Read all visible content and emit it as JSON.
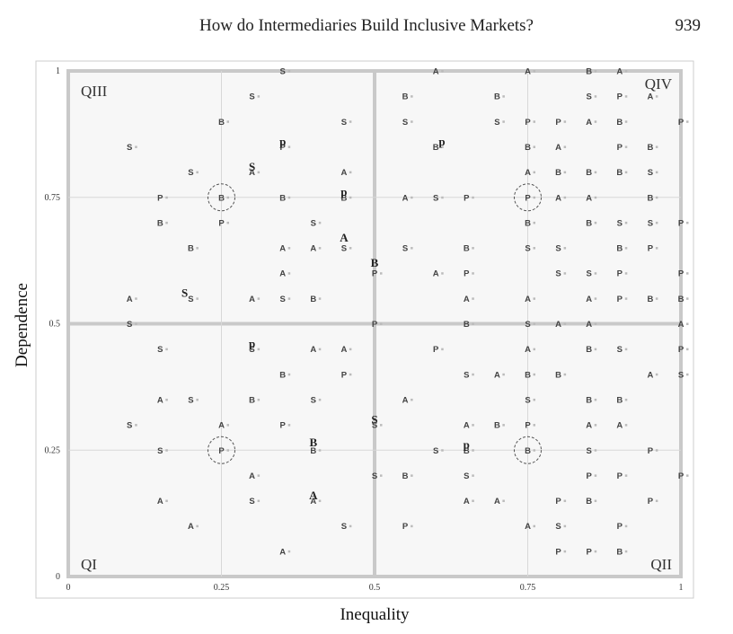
{
  "header": {
    "title": "How do Intermediaries Build Inclusive Markets?",
    "page_number": "939"
  },
  "chart_data": {
    "type": "scatter",
    "xlabel": "Inequality",
    "ylabel": "Dependence",
    "xlim": [
      0,
      1
    ],
    "ylim": [
      0,
      1
    ],
    "x_ticks": [
      "0",
      "0.25",
      "0.5",
      "0.75",
      "1"
    ],
    "y_ticks": [
      "0",
      "0.25",
      "0.5",
      "0.75",
      "1"
    ],
    "grid": true,
    "quadrant_labels": {
      "q1": "QI",
      "q2": "QII",
      "q3": "QIII",
      "q4": "QIV"
    },
    "circled_points": [
      [
        0.25,
        0.75
      ],
      [
        0.75,
        0.75
      ],
      [
        0.25,
        0.25
      ],
      [
        0.75,
        0.25
      ]
    ],
    "points": [
      [
        "S",
        0.35,
        1
      ],
      [
        "A",
        0.6,
        1
      ],
      [
        "A",
        0.75,
        1
      ],
      [
        "B",
        0.85,
        1
      ],
      [
        "A",
        0.9,
        1
      ],
      [
        "S",
        0.3,
        0.95
      ],
      [
        "B",
        0.55,
        0.95
      ],
      [
        "B",
        0.7,
        0.95
      ],
      [
        "S",
        0.85,
        0.95
      ],
      [
        "P",
        0.9,
        0.95
      ],
      [
        "A",
        0.95,
        0.95
      ],
      [
        "B",
        0.25,
        0.9
      ],
      [
        "S",
        0.45,
        0.9
      ],
      [
        "S",
        0.55,
        0.9
      ],
      [
        "S",
        0.7,
        0.9
      ],
      [
        "P",
        0.75,
        0.9
      ],
      [
        "P",
        0.8,
        0.9
      ],
      [
        "A",
        0.85,
        0.9
      ],
      [
        "B",
        0.9,
        0.9
      ],
      [
        "P",
        1,
        0.9
      ],
      [
        "S",
        0.1,
        0.85
      ],
      [
        "P",
        0.35,
        0.85
      ],
      [
        "B",
        0.6,
        0.85
      ],
      [
        "B",
        0.75,
        0.85
      ],
      [
        "A",
        0.8,
        0.85
      ],
      [
        "P",
        0.9,
        0.85
      ],
      [
        "B",
        0.95,
        0.85
      ],
      [
        "S",
        0.2,
        0.8
      ],
      [
        "A",
        0.3,
        0.8
      ],
      [
        "A",
        0.45,
        0.8
      ],
      [
        "A",
        0.75,
        0.8
      ],
      [
        "B",
        0.8,
        0.8
      ],
      [
        "B",
        0.85,
        0.8
      ],
      [
        "B",
        0.9,
        0.8
      ],
      [
        "S",
        0.95,
        0.8
      ],
      [
        "P",
        0.15,
        0.75
      ],
      [
        "B",
        0.25,
        0.75
      ],
      [
        "B",
        0.35,
        0.75
      ],
      [
        "B",
        0.45,
        0.75
      ],
      [
        "A",
        0.55,
        0.75
      ],
      [
        "S",
        0.6,
        0.75
      ],
      [
        "P",
        0.65,
        0.75
      ],
      [
        "P",
        0.75,
        0.75
      ],
      [
        "A",
        0.8,
        0.75
      ],
      [
        "A",
        0.85,
        0.75
      ],
      [
        "B",
        0.95,
        0.75
      ],
      [
        "B",
        0.15,
        0.7
      ],
      [
        "P",
        0.25,
        0.7
      ],
      [
        "S",
        0.4,
        0.7
      ],
      [
        "B",
        0.75,
        0.7
      ],
      [
        "B",
        0.85,
        0.7
      ],
      [
        "S",
        0.9,
        0.7
      ],
      [
        "S",
        0.95,
        0.7
      ],
      [
        "P",
        1,
        0.7
      ],
      [
        "B",
        0.2,
        0.65
      ],
      [
        "A",
        0.35,
        0.65
      ],
      [
        "A",
        0.4,
        0.65
      ],
      [
        "S",
        0.45,
        0.65
      ],
      [
        "S",
        0.55,
        0.65
      ],
      [
        "B",
        0.65,
        0.65
      ],
      [
        "S",
        0.75,
        0.65
      ],
      [
        "S",
        0.8,
        0.65
      ],
      [
        "B",
        0.9,
        0.65
      ],
      [
        "P",
        0.95,
        0.65
      ],
      [
        "A",
        0.35,
        0.6
      ],
      [
        "P",
        0.5,
        0.6
      ],
      [
        "A",
        0.6,
        0.6
      ],
      [
        "P",
        0.65,
        0.6
      ],
      [
        "S",
        0.8,
        0.6
      ],
      [
        "S",
        0.85,
        0.6
      ],
      [
        "P",
        0.9,
        0.6
      ],
      [
        "P",
        1,
        0.6
      ],
      [
        "A",
        0.1,
        0.55
      ],
      [
        "S",
        0.2,
        0.55
      ],
      [
        "A",
        0.3,
        0.55
      ],
      [
        "S",
        0.35,
        0.55
      ],
      [
        "B",
        0.4,
        0.55
      ],
      [
        "A",
        0.65,
        0.55
      ],
      [
        "A",
        0.75,
        0.55
      ],
      [
        "A",
        0.85,
        0.55
      ],
      [
        "P",
        0.9,
        0.55
      ],
      [
        "B",
        0.95,
        0.55
      ],
      [
        "B",
        1,
        0.55
      ],
      [
        "S",
        0.1,
        0.5
      ],
      [
        "P",
        0.5,
        0.5
      ],
      [
        "B",
        0.65,
        0.5
      ],
      [
        "S",
        0.75,
        0.5
      ],
      [
        "A",
        0.8,
        0.5
      ],
      [
        "A",
        0.85,
        0.5
      ],
      [
        "A",
        1,
        0.5
      ],
      [
        "S",
        0.15,
        0.45
      ],
      [
        "S",
        0.3,
        0.45
      ],
      [
        "A",
        0.4,
        0.45
      ],
      [
        "A",
        0.45,
        0.45
      ],
      [
        "P",
        0.6,
        0.45
      ],
      [
        "A",
        0.75,
        0.45
      ],
      [
        "B",
        0.85,
        0.45
      ],
      [
        "S",
        0.9,
        0.45
      ],
      [
        "P",
        1,
        0.45
      ],
      [
        "B",
        0.35,
        0.4
      ],
      [
        "P",
        0.45,
        0.4
      ],
      [
        "S",
        0.65,
        0.4
      ],
      [
        "A",
        0.7,
        0.4
      ],
      [
        "B",
        0.75,
        0.4
      ],
      [
        "B",
        0.8,
        0.4
      ],
      [
        "A",
        0.95,
        0.4
      ],
      [
        "S",
        1,
        0.4
      ],
      [
        "A",
        0.15,
        0.35
      ],
      [
        "S",
        0.2,
        0.35
      ],
      [
        "B",
        0.3,
        0.35
      ],
      [
        "S",
        0.4,
        0.35
      ],
      [
        "A",
        0.55,
        0.35
      ],
      [
        "S",
        0.75,
        0.35
      ],
      [
        "B",
        0.85,
        0.35
      ],
      [
        "B",
        0.9,
        0.35
      ],
      [
        "S",
        0.1,
        0.3
      ],
      [
        "A",
        0.25,
        0.3
      ],
      [
        "P",
        0.35,
        0.3
      ],
      [
        "S",
        0.5,
        0.3
      ],
      [
        "A",
        0.65,
        0.3
      ],
      [
        "B",
        0.7,
        0.3
      ],
      [
        "P",
        0.75,
        0.3
      ],
      [
        "A",
        0.85,
        0.3
      ],
      [
        "A",
        0.9,
        0.3
      ],
      [
        "S",
        0.15,
        0.25
      ],
      [
        "P",
        0.25,
        0.25
      ],
      [
        "B",
        0.4,
        0.25
      ],
      [
        "S",
        0.6,
        0.25
      ],
      [
        "B",
        0.65,
        0.25
      ],
      [
        "B",
        0.75,
        0.25
      ],
      [
        "S",
        0.85,
        0.25
      ],
      [
        "P",
        0.95,
        0.25
      ],
      [
        "A",
        0.3,
        0.2
      ],
      [
        "S",
        0.5,
        0.2
      ],
      [
        "B",
        0.55,
        0.2
      ],
      [
        "S",
        0.65,
        0.2
      ],
      [
        "P",
        0.85,
        0.2
      ],
      [
        "P",
        0.9,
        0.2
      ],
      [
        "P",
        1,
        0.2
      ],
      [
        "A",
        0.15,
        0.15
      ],
      [
        "S",
        0.3,
        0.15
      ],
      [
        "A",
        0.4,
        0.15
      ],
      [
        "A",
        0.65,
        0.15
      ],
      [
        "A",
        0.7,
        0.15
      ],
      [
        "P",
        0.8,
        0.15
      ],
      [
        "B",
        0.85,
        0.15
      ],
      [
        "P",
        0.95,
        0.15
      ],
      [
        "A",
        0.2,
        0.1
      ],
      [
        "S",
        0.45,
        0.1
      ],
      [
        "P",
        0.55,
        0.1
      ],
      [
        "A",
        0.75,
        0.1
      ],
      [
        "S",
        0.8,
        0.1
      ],
      [
        "P",
        0.9,
        0.1
      ],
      [
        "A",
        0.35,
        0.05
      ],
      [
        "P",
        0.8,
        0.05
      ],
      [
        "P",
        0.85,
        0.05
      ],
      [
        "B",
        0.9,
        0.05
      ]
    ],
    "highlighted_letters": [
      [
        "p",
        0.35,
        0.86
      ],
      [
        "p",
        0.61,
        0.86
      ],
      [
        "S",
        0.3,
        0.81
      ],
      [
        "p",
        0.45,
        0.76
      ],
      [
        "A",
        0.45,
        0.67
      ],
      [
        "B",
        0.5,
        0.62
      ],
      [
        "S",
        0.19,
        0.56
      ],
      [
        "p",
        0.3,
        0.46
      ],
      [
        "S",
        0.5,
        0.31
      ],
      [
        "B",
        0.4,
        0.265
      ],
      [
        "p",
        0.65,
        0.26
      ],
      [
        "A",
        0.4,
        0.16
      ]
    ]
  }
}
